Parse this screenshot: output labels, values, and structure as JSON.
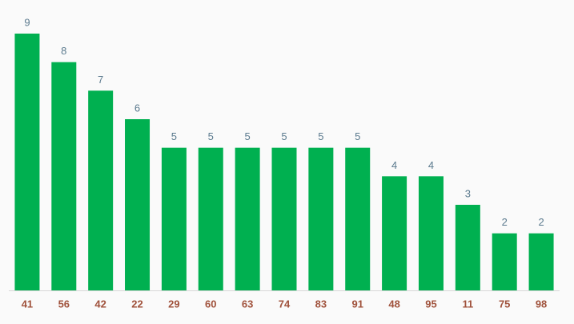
{
  "chart_data": {
    "type": "bar",
    "categories": [
      "41",
      "56",
      "42",
      "22",
      "29",
      "60",
      "63",
      "74",
      "83",
      "91",
      "48",
      "95",
      "11",
      "75",
      "98"
    ],
    "values": [
      9,
      8,
      7,
      6,
      5,
      5,
      5,
      5,
      5,
      5,
      4,
      4,
      3,
      2,
      2
    ],
    "color": "#00b050",
    "ylim": [
      0,
      9
    ]
  }
}
